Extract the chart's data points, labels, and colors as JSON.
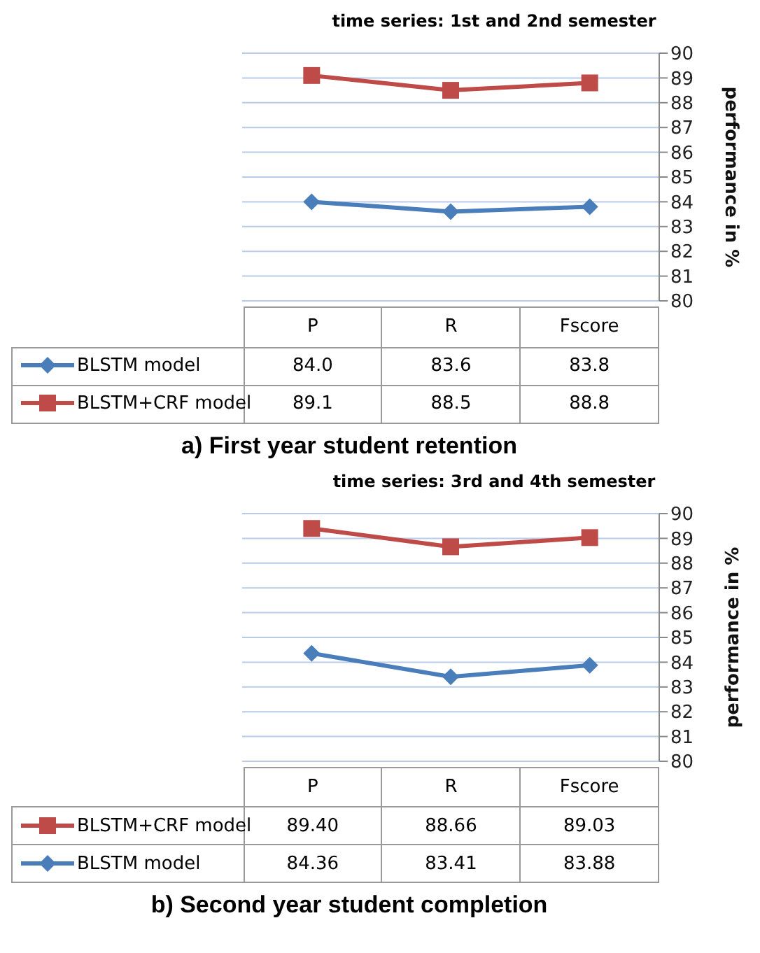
{
  "chart_data": [
    {
      "type": "line",
      "title": "time series: 1st and 2nd semester",
      "ylabel": "performance in %",
      "annotations": [
        "a) First year student retention"
      ],
      "categories": [
        "P",
        "R",
        "Fscore"
      ],
      "ylim": [
        80,
        90
      ],
      "yticks": [
        80,
        81,
        82,
        83,
        84,
        85,
        86,
        87,
        88,
        89,
        90
      ],
      "grid": "y",
      "legend": "bottom",
      "series": [
        {
          "name": "BLSTM model",
          "color": "#4a7ebb",
          "marker": "diamond",
          "values": [
            84.0,
            83.6,
            83.8
          ],
          "value_labels": [
            "84.0",
            "83.6",
            "83.8"
          ]
        },
        {
          "name": "BLSTM+CRF model",
          "color": "#be4b48",
          "marker": "square",
          "values": [
            89.1,
            88.5,
            88.8
          ],
          "value_labels": [
            "89.1",
            "88.5",
            "88.8"
          ]
        }
      ]
    },
    {
      "type": "line",
      "title": "time series: 3rd and 4th semester",
      "ylabel": "performance in %",
      "annotations": [
        "b) Second year student completion"
      ],
      "categories": [
        "P",
        "R",
        "Fscore"
      ],
      "ylim": [
        80,
        90
      ],
      "yticks": [
        80,
        81,
        82,
        83,
        84,
        85,
        86,
        87,
        88,
        89,
        90
      ],
      "grid": "y",
      "legend": "bottom",
      "series": [
        {
          "name": "BLSTM+CRF model",
          "color": "#be4b48",
          "marker": "square",
          "values": [
            89.4,
            88.66,
            89.03
          ],
          "value_labels": [
            "89.40",
            "88.66",
            "89.03"
          ]
        },
        {
          "name": "BLSTM model",
          "color": "#4a7ebb",
          "marker": "diamond",
          "values": [
            84.36,
            83.41,
            83.88
          ],
          "value_labels": [
            "84.36",
            "83.41",
            "83.88"
          ]
        }
      ]
    }
  ]
}
